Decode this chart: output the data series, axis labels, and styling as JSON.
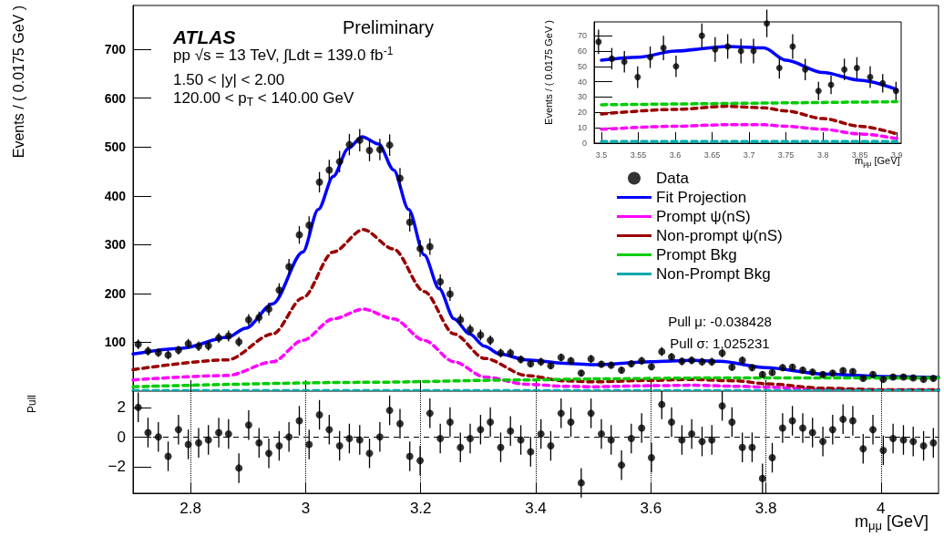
{
  "chart_data": [
    {
      "type": "scatter",
      "ylabel": "Events / ( 0.0175 GeV )",
      "xlim": [
        2.7,
        4.1
      ],
      "ylim": [
        0,
        790
      ],
      "xticks": [
        {
          "value": 2.8,
          "label": null
        },
        {
          "value": 3.0,
          "label": null
        },
        {
          "value": 3.2,
          "label": null
        },
        {
          "value": 3.4,
          "label": null
        },
        {
          "value": 3.6,
          "label": null
        },
        {
          "value": 3.8,
          "label": null
        },
        {
          "value": 4.0,
          "label": null
        }
      ],
      "yticks": [
        100,
        200,
        300,
        400,
        500,
        600,
        700
      ],
      "tick_labels": "y",
      "legend": "right",
      "annotations": [
        "ATLAS",
        "Preliminary",
        "pp √s = 13 TeV, ∫Ldt = 139.0 fb$^{-1}$",
        "1.50 < |y| < 2.00",
        "120.00 < p$_{T}$ < 140.00 GeV",
        "Pull μ: -0.038428",
        "Pull σ: 1.025231"
      ],
      "series": [
        {
          "name": "Data",
          "type": "scatter",
          "marker": "circle",
          "color": "#000000",
          "x": [
            2.709,
            2.726,
            2.744,
            2.761,
            2.779,
            2.796,
            2.814,
            2.831,
            2.849,
            2.866,
            2.884,
            2.901,
            2.919,
            2.936,
            2.954,
            2.971,
            2.989,
            3.006,
            3.024,
            3.041,
            3.059,
            3.076,
            3.094,
            3.111,
            3.129,
            3.146,
            3.164,
            3.181,
            3.199,
            3.216,
            3.234,
            3.251,
            3.269,
            3.286,
            3.304,
            3.321,
            3.339,
            3.356,
            3.374,
            3.391,
            3.409,
            3.426,
            3.444,
            3.461,
            3.479,
            3.496,
            3.514,
            3.531,
            3.549,
            3.566,
            3.584,
            3.601,
            3.619,
            3.636,
            3.654,
            3.671,
            3.689,
            3.706,
            3.724,
            3.741,
            3.759,
            3.776,
            3.794,
            3.811,
            3.829,
            3.846,
            3.864,
            3.881,
            3.899,
            3.916,
            3.934,
            3.951,
            3.969,
            3.986,
            4.004,
            4.021,
            4.039,
            4.056,
            4.074,
            4.091
          ],
          "values": [
            96,
            82,
            79,
            74,
            84,
            97,
            92,
            93,
            109,
            113,
            101,
            146,
            151,
            168,
            207,
            255,
            320,
            340,
            428,
            453,
            470,
            505,
            514,
            493,
            495,
            504,
            436,
            346,
            292,
            296,
            224,
            199,
            146,
            126,
            115,
            104,
            78,
            78,
            65,
            56,
            60,
            52,
            69,
            62,
            37,
            66,
            55,
            53,
            43,
            56,
            62,
            50,
            81,
            70,
            61,
            63,
            60,
            60,
            78,
            49,
            63,
            48,
            34,
            38,
            48,
            49,
            43,
            39,
            34,
            37,
            42,
            40,
            26,
            34,
            24,
            29,
            29,
            27,
            24,
            26
          ],
          "errors": [
            10,
            9,
            9,
            9,
            9,
            10,
            10,
            10,
            10,
            11,
            10,
            12,
            12,
            13,
            14,
            16,
            18,
            18,
            21,
            21,
            22,
            22,
            23,
            22,
            22,
            22,
            21,
            19,
            17,
            17,
            15,
            14,
            12,
            11,
            11,
            10,
            9,
            9,
            8,
            7,
            8,
            7,
            8,
            8,
            6,
            8,
            7,
            7,
            7,
            7,
            8,
            7,
            9,
            8,
            8,
            8,
            8,
            8,
            9,
            7,
            8,
            7,
            6,
            6,
            7,
            7,
            7,
            6,
            6,
            6,
            6,
            6,
            5,
            6,
            5,
            5,
            5,
            5,
            5,
            5
          ]
        },
        {
          "name": "Fit Projection",
          "type": "line",
          "marker": "none",
          "line_style": "solid",
          "color": "#0000ff",
          "x": [
            2.7,
            2.785,
            2.864,
            2.896,
            2.943,
            2.995,
            3.022,
            3.048,
            3.074,
            3.098,
            3.127,
            3.153,
            3.179,
            3.206,
            3.232,
            3.258,
            3.285,
            3.311,
            3.337,
            3.384,
            3.45,
            3.5,
            3.6,
            3.67,
            3.72,
            3.8,
            3.9,
            4.0,
            4.1
          ],
          "values": [
            76,
            88,
            110,
            129,
            179,
            285,
            372,
            440,
            497,
            521,
            506,
            453,
            372,
            279,
            210,
            148,
            117,
            92,
            76,
            64,
            57,
            54,
            60,
            63,
            61,
            48,
            35,
            30,
            28
          ]
        },
        {
          "name": "Prompt ψ(nS)",
          "type": "line",
          "marker": "none",
          "line_style": "dashed",
          "color": "#ff00ff",
          "x": [
            2.7,
            2.864,
            2.943,
            2.995,
            3.048,
            3.1,
            3.153,
            3.206,
            3.258,
            3.311,
            3.384,
            3.45,
            3.5,
            3.6,
            3.67,
            3.75,
            3.8,
            3.9,
            4.0,
            4.1
          ],
          "values": [
            23,
            32,
            60,
            104,
            148,
            168,
            148,
            104,
            60,
            29,
            14,
            10,
            9,
            11,
            12,
            10,
            8,
            3,
            2,
            2
          ]
        },
        {
          "name": "Non-prompt ψ(nS)",
          "type": "line",
          "marker": "none",
          "line_style": "dashed",
          "color": "#990000",
          "x": [
            2.7,
            2.864,
            2.943,
            2.995,
            3.048,
            3.1,
            3.153,
            3.206,
            3.258,
            3.311,
            3.384,
            3.45,
            3.5,
            3.6,
            3.67,
            3.75,
            3.8,
            3.9,
            4.0,
            4.1
          ],
          "values": [
            44,
            64,
            117,
            191,
            285,
            331,
            291,
            204,
            117,
            67,
            32,
            21,
            19,
            22,
            24,
            21,
            15,
            6,
            3,
            3
          ]
        },
        {
          "name": "Prompt Bkg",
          "type": "line",
          "marker": "none",
          "line_style": "dashed",
          "color": "#00cc00",
          "x": [
            2.7,
            3.1,
            3.384,
            3.5,
            3.7,
            3.9,
            4.1
          ],
          "values": [
            9,
            18,
            23,
            25,
            27,
            27,
            27
          ]
        },
        {
          "name": "Non-Prompt Bkg",
          "type": "line",
          "marker": "none",
          "line_style": "dashed",
          "color": "#00aaaa",
          "x": [
            2.7,
            4.1
          ],
          "values": [
            1,
            1
          ]
        }
      ]
    },
    {
      "type": "scatter",
      "ylabel": "Events / ( 0.0175 GeV )",
      "xlabel": "m$_{μμ}$ [GeV]",
      "xlim": [
        3.49,
        3.906
      ],
      "ylim": [
        0,
        79
      ],
      "xticks": [
        3.5,
        3.55,
        3.6,
        3.65,
        3.7,
        3.75,
        3.8,
        3.85,
        3.9
      ],
      "yticks": [
        0,
        10,
        20,
        30,
        40,
        50,
        60,
        70
      ],
      "series": [
        {
          "type": "scatter",
          "marker": "circle",
          "color": "#000000",
          "x": [
            3.496,
            3.514,
            3.531,
            3.549,
            3.566,
            3.584,
            3.601,
            3.619,
            3.636,
            3.654,
            3.671,
            3.689,
            3.706,
            3.724,
            3.741,
            3.759,
            3.776,
            3.794,
            3.811,
            3.829,
            3.846,
            3.864,
            3.881,
            3.899
          ],
          "values": [
            66,
            55,
            53,
            43,
            56,
            62,
            50,
            null,
            70,
            61,
            63,
            60,
            60,
            78,
            49,
            63,
            48,
            34,
            38,
            48,
            49,
            43,
            39,
            34
          ],
          "errors": [
            8,
            7,
            7,
            7,
            7,
            8,
            7,
            null,
            8,
            8,
            8,
            8,
            8,
            9,
            7,
            8,
            7,
            6,
            6,
            7,
            7,
            7,
            6,
            6
          ]
        },
        {
          "type": "line",
          "marker": "none",
          "line_style": "solid",
          "color": "#0000ff",
          "x": [
            3.5,
            3.55,
            3.6,
            3.67,
            3.72,
            3.75,
            3.8,
            3.85,
            3.9
          ],
          "values": [
            54,
            56,
            60,
            63,
            62,
            54,
            46,
            41,
            35
          ]
        },
        {
          "type": "line",
          "marker": "none",
          "line_style": "dashed",
          "color": "#990000",
          "x": [
            3.5,
            3.6,
            3.67,
            3.72,
            3.75,
            3.8,
            3.85,
            3.9
          ],
          "values": [
            19,
            22,
            24,
            23,
            21,
            16,
            11,
            6
          ]
        },
        {
          "type": "line",
          "marker": "none",
          "line_style": "dashed",
          "color": "#ff00ff",
          "x": [
            3.5,
            3.6,
            3.67,
            3.72,
            3.75,
            3.8,
            3.85,
            3.9
          ],
          "values": [
            9,
            11,
            12,
            12,
            11,
            9,
            6,
            3
          ]
        },
        {
          "type": "line",
          "marker": "none",
          "line_style": "dashed",
          "color": "#00cc00",
          "x": [
            3.5,
            3.9
          ],
          "values": [
            25,
            27
          ]
        },
        {
          "type": "line",
          "marker": "none",
          "line_style": "dashed",
          "color": "#00aaaa",
          "x": [
            3.5,
            3.9
          ],
          "values": [
            1,
            1
          ]
        }
      ]
    },
    {
      "type": "scatter",
      "ylabel": "Pull",
      "xlabel": "m$_{μμ}$ [GeV]",
      "xlim": [
        2.7,
        4.1
      ],
      "ylim": [
        -3.8,
        3.1
      ],
      "xticks": [
        2.8,
        3,
        3.2,
        3.4,
        3.6,
        3.8,
        4
      ],
      "yticks": [
        {
          "value": -2,
          "label": "−2"
        },
        0,
        2
      ],
      "grid": "x",
      "ref_lines": [
        {
          "axis": "y",
          "value": 0,
          "line_style": "dashed",
          "color": "#000000"
        }
      ],
      "series": [
        {
          "type": "scatter",
          "marker": "circle",
          "color": "#000000",
          "x": [
            2.709,
            2.726,
            2.744,
            2.761,
            2.779,
            2.796,
            2.814,
            2.831,
            2.849,
            2.866,
            2.884,
            2.901,
            2.919,
            2.936,
            2.954,
            2.971,
            2.989,
            3.006,
            3.024,
            3.041,
            3.059,
            3.076,
            3.094,
            3.111,
            3.129,
            3.146,
            3.164,
            3.181,
            3.199,
            3.216,
            3.234,
            3.251,
            3.269,
            3.286,
            3.304,
            3.321,
            3.339,
            3.356,
            3.374,
            3.391,
            3.409,
            3.426,
            3.444,
            3.461,
            3.479,
            3.496,
            3.514,
            3.531,
            3.549,
            3.566,
            3.584,
            3.601,
            3.619,
            3.636,
            3.654,
            3.671,
            3.689,
            3.706,
            3.724,
            3.741,
            3.759,
            3.776,
            3.794,
            3.811,
            3.829,
            3.846,
            3.864,
            3.881,
            3.899,
            3.916,
            3.934,
            3.951,
            3.969,
            3.986,
            4.004,
            4.021,
            4.039,
            4.056,
            4.074,
            4.091
          ],
          "values": [
            2.0,
            0.3,
            0,
            -1.3,
            0.5,
            -0.5,
            -0.4,
            -0.2,
            0.3,
            0.2,
            -2.1,
            0.8,
            -0.4,
            -1.1,
            -0.6,
            0,
            1.1,
            -0.5,
            1.5,
            0.5,
            -0.6,
            -0.1,
            -0.2,
            -1.1,
            0,
            1.8,
            0.9,
            -1.3,
            -1.6,
            1.6,
            -0.1,
            1.0,
            -0.7,
            -0.1,
            0.5,
            1.0,
            -0.7,
            0.4,
            -0.2,
            -1.0,
            0.2,
            -0.6,
            1.6,
            1.0,
            -3.1,
            1.6,
            0.2,
            -0.2,
            -1.9,
            -0.1,
            0.6,
            -1.4,
            2.2,
            1.0,
            -0.2,
            0.2,
            -0.3,
            -0.2,
            2.1,
            1.0,
            -0.7,
            -0.7,
            -2.8,
            -1.4,
            0.6,
            1.1,
            0.6,
            0.3,
            -0.3,
            0.5,
            1.2,
            1.1,
            -0.8,
            0.5,
            -0.9,
            -0.1,
            -0.2,
            -0.3,
            -0.6,
            -0.4
          ],
          "errors": [
            1,
            1,
            1,
            1,
            1,
            1,
            1,
            1,
            1,
            1,
            1,
            1,
            1,
            1,
            1,
            1,
            1,
            1,
            1,
            1,
            1,
            1,
            1,
            1,
            1,
            1,
            1,
            1,
            1,
            1,
            1,
            1,
            1,
            1,
            1,
            1,
            1,
            1,
            1,
            1,
            1,
            1,
            1,
            1,
            1,
            1,
            1,
            1,
            1,
            1,
            1,
            1,
            1,
            1,
            1,
            1,
            1,
            1,
            1,
            1,
            1,
            1,
            1,
            1,
            1,
            1,
            1,
            1,
            1,
            1,
            1,
            1,
            1,
            1,
            1,
            1,
            1,
            1,
            1,
            1
          ]
        }
      ]
    }
  ]
}
